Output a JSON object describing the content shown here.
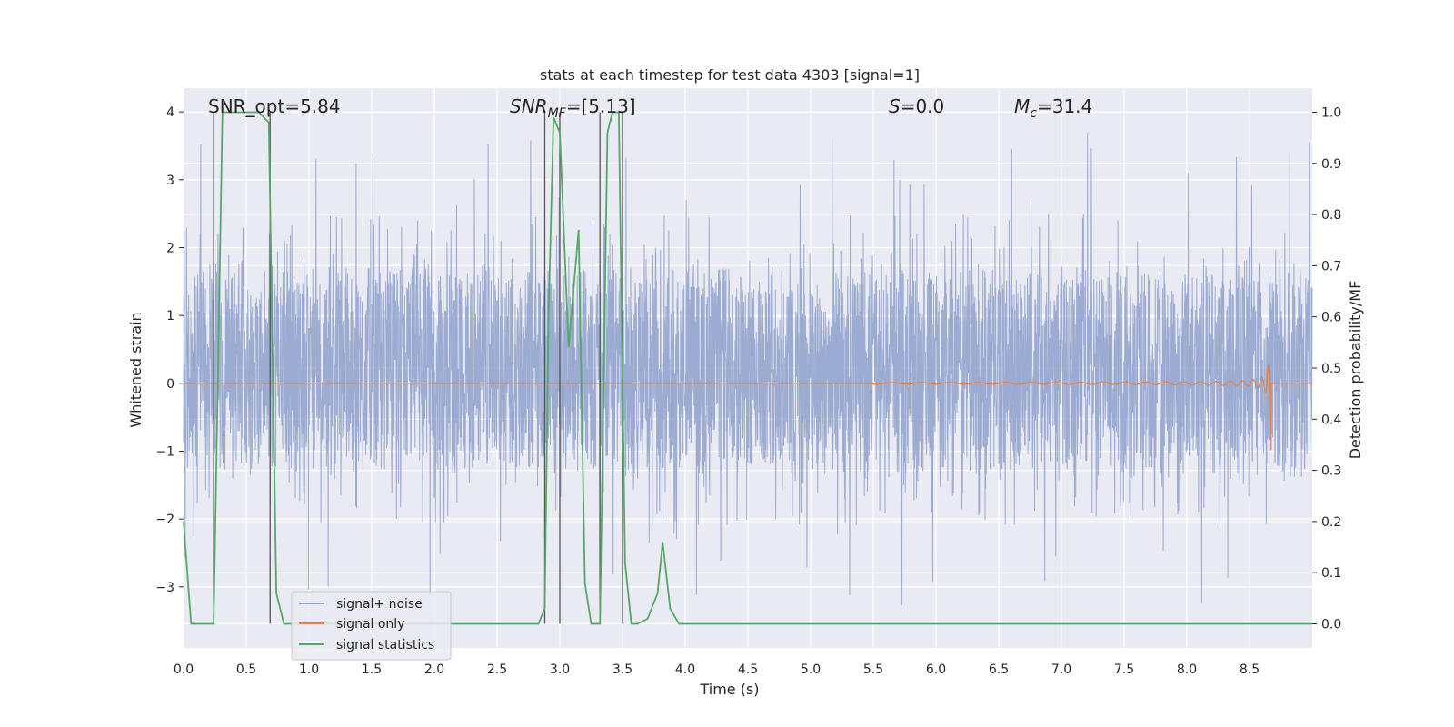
{
  "chart_data": {
    "type": "line",
    "title": "stats at each timestep for test data 4303 [signal=1]",
    "xlabel": "Time (s)",
    "ylabel": "Whitened strain",
    "ylabel_right": "Detection probability/MF",
    "xlim": [
      0,
      9.0
    ],
    "ylim": [
      -3.9,
      4.35
    ],
    "ylim_right": [
      -0.047,
      1.047
    ],
    "grid": true,
    "legend_position": "lower-left",
    "x_ticks": [
      "0.0",
      "0.5",
      "1.0",
      "1.5",
      "2.0",
      "2.5",
      "3.0",
      "3.5",
      "4.0",
      "4.5",
      "5.0",
      "5.5",
      "6.0",
      "6.5",
      "7.0",
      "7.5",
      "8.0",
      "8.5"
    ],
    "y_ticks": [
      "−3",
      "−2",
      "−1",
      "0",
      "1",
      "2",
      "3",
      "4"
    ],
    "y_ticks_right": [
      "0.0",
      "0.1",
      "0.2",
      "0.3",
      "0.4",
      "0.5",
      "0.6",
      "0.7",
      "0.8",
      "0.9",
      "1.0"
    ],
    "annotations": {
      "snr_opt": "SNR_opt=5.84",
      "snr_mf_prefix": "SNR",
      "snr_mf_sub": "MF",
      "snr_mf_value": "=[5.13]",
      "s_symbol": "S",
      "s_value": "=0.0",
      "mc_symbol": "M",
      "mc_sub": "c",
      "mc_value": "=31.4"
    },
    "series": [
      {
        "name": "signal+ noise",
        "color": "#8da0cb",
        "description_values": "noise band approx -1.3..1.7 with spikes to ±3.6"
      },
      {
        "name": "signal only",
        "color": "#dd8452",
        "chirp_end": 8.67,
        "chirp_peak": 1.35
      },
      {
        "name": "signal statistics",
        "color": "#55a868",
        "x": [
          0.0,
          0.06,
          0.24,
          0.31,
          0.34,
          0.4,
          0.5,
          0.6,
          0.68,
          0.74,
          0.8,
          0.9,
          1.0,
          2.0,
          2.83,
          2.88,
          2.91,
          2.95,
          3.0,
          3.07,
          3.15,
          3.2,
          3.25,
          3.32,
          3.38,
          3.42,
          3.47,
          3.52,
          3.57,
          3.62,
          3.7,
          3.78,
          3.82,
          3.88,
          3.95,
          4.5,
          9.0
        ],
        "y": [
          0.2,
          0.0,
          0.0,
          1.0,
          1.0,
          1.0,
          1.0,
          1.0,
          0.98,
          0.06,
          0.0,
          0.0,
          0.0,
          0.0,
          0.0,
          0.03,
          0.6,
          0.99,
          0.96,
          0.54,
          0.77,
          0.08,
          0.0,
          0.0,
          0.96,
          1.0,
          1.0,
          0.12,
          0.0,
          0.0,
          0.01,
          0.06,
          0.16,
          0.03,
          0.0,
          0.0,
          0.0
        ]
      }
    ],
    "vertical_markers": [
      0.24,
      0.69,
      2.88,
      3.0,
      3.32,
      3.5
    ]
  },
  "legend": {
    "items": [
      {
        "label": "signal+ noise",
        "color": "#8da0cb"
      },
      {
        "label": "signal only",
        "color": "#dd8452"
      },
      {
        "label": "signal statistics",
        "color": "#55a868"
      }
    ]
  },
  "colors": {
    "plot_background": "#eaeaf2",
    "grid": "#ffffff",
    "marker_line": "#555555"
  }
}
